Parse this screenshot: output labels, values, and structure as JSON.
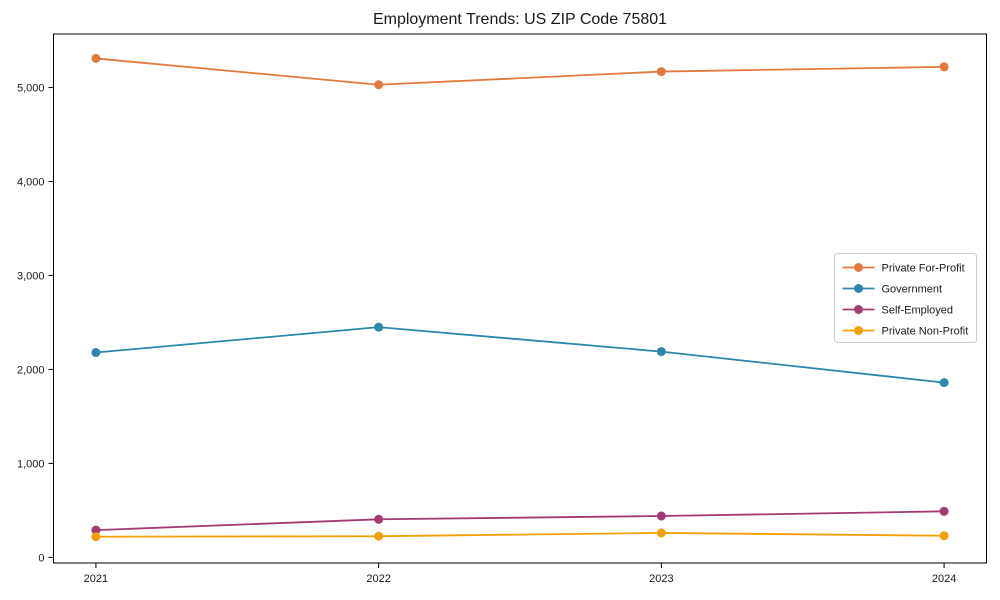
{
  "chart_data": {
    "type": "line",
    "title": "Employment Trends: US ZIP Code 75801",
    "xlabel": "",
    "ylabel": "",
    "categories": [
      2021,
      2022,
      2023,
      2024
    ],
    "x_tick_labels": [
      "2021",
      "2022",
      "2023",
      "2024"
    ],
    "y_tick_values": [
      0,
      1000,
      2000,
      3000,
      4000,
      5000
    ],
    "y_tick_labels": [
      "0",
      "1,000",
      "2,000",
      "3,000",
      "4,000",
      "5,000"
    ],
    "xlim": [
      2020.85,
      2024.15
    ],
    "ylim": [
      -60,
      5570
    ],
    "grid": false,
    "legend_position": "center-right",
    "frame": true,
    "series": [
      {
        "name": "Private For-Profit",
        "color": "#E2793F",
        "values": [
          5310,
          5030,
          5170,
          5220
        ]
      },
      {
        "name": "Government",
        "color": "#2E86AB",
        "values": [
          2180,
          2450,
          2190,
          1860
        ]
      },
      {
        "name": "Self-Employed",
        "color": "#A23B72",
        "values": [
          290,
          405,
          440,
          490
        ]
      },
      {
        "name": "Private Non-Profit",
        "color": "#F2A007",
        "values": [
          220,
          225,
          260,
          230
        ]
      }
    ],
    "colors": {
      "spine": "#000000",
      "tick": "#000000",
      "legend_border": "#cccccc",
      "legend_background": "#ffffff"
    }
  }
}
